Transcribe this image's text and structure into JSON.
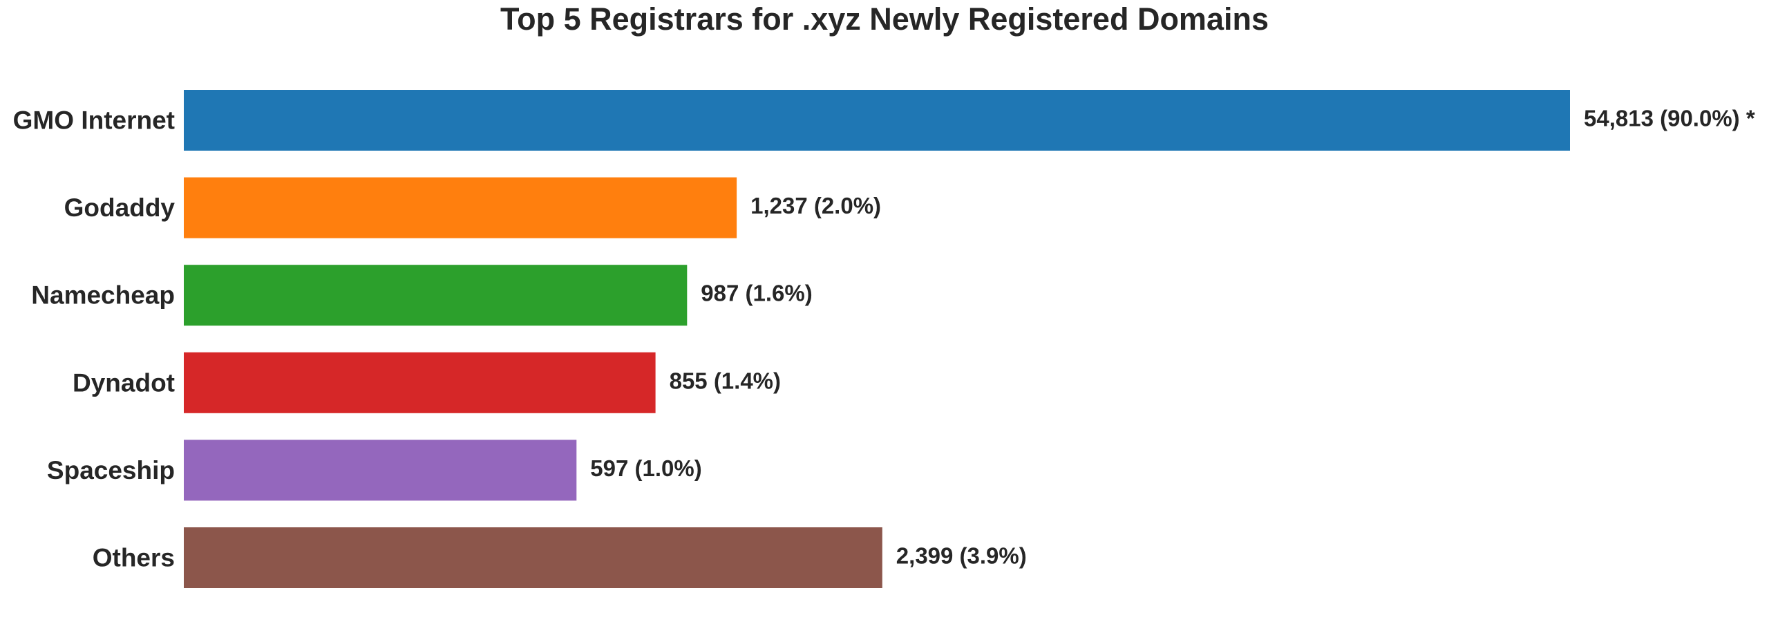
{
  "chart_data": {
    "type": "bar",
    "orientation": "horizontal",
    "title": "Top 5 Registrars for .xyz Newly Registered Domains",
    "xlabel": "",
    "ylabel": "",
    "grid": false,
    "categories": [
      "GMO Internet",
      "Godaddy",
      "Namecheap",
      "Dynadot",
      "Spaceship",
      "Others"
    ],
    "values": [
      54813,
      1237,
      987,
      855,
      597,
      2399
    ],
    "scale": "log",
    "xlim": [
      100,
      54813
    ],
    "colors": [
      "#1f77b4",
      "#ff7f0e",
      "#2ca02c",
      "#d62728",
      "#9467bd",
      "#8c564b"
    ],
    "data_labels": [
      "54,813 (90.0%) *",
      "1,237 (2.0%)",
      "987 (1.6%)",
      "855 (1.4%)",
      "597 (1.0%)",
      "2,399 (3.9%)"
    ]
  }
}
